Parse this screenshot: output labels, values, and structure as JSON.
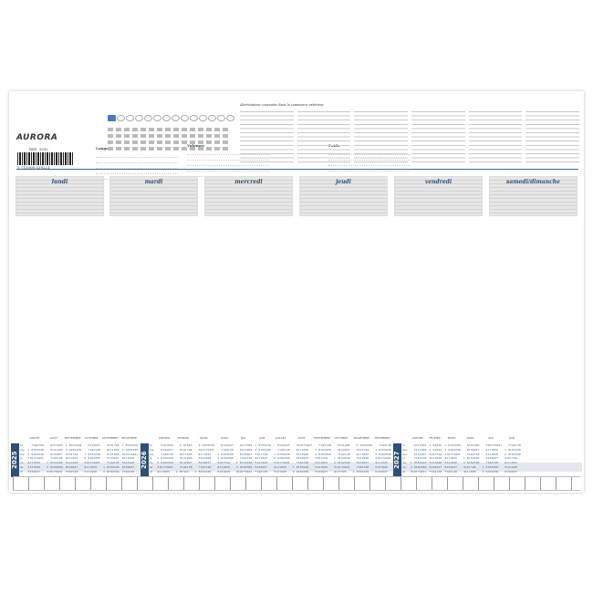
{
  "brand": "AURORA",
  "ref": "REF. 3392",
  "ean": "5 711008 339221",
  "units": [
    {
      "title": "Longueurs"
    },
    {
      "title": "Volumes"
    },
    {
      "title": "Poids"
    }
  ],
  "abbreviations_title": "Abréviations courantes dans le commerce extérieur",
  "days": [
    "lundi",
    "mardi",
    "mercredi",
    "jeudi",
    "vendredi",
    "samedi/dimanche"
  ],
  "weekdays": [
    "lu",
    "ma",
    "me",
    "je",
    "ve",
    "sa",
    "di"
  ],
  "accent": "#2d4f78",
  "years": [
    {
      "year": "2025",
      "months": [
        "JUILLET",
        "AOÛT",
        "SEPTEMBRE",
        "OCTOBRE",
        "NOVEMBRE",
        "DÉCEMBRE"
      ]
    },
    {
      "year": "2026",
      "months": [
        "JANVIER",
        "FÉVRIER",
        "MARS",
        "AVRIL",
        "MAI",
        "JUIN",
        "JUILLET",
        "AOÛT",
        "SEPTEMBRE",
        "OCTOBRE",
        "NOVEMBRE",
        "DÉCEMBRE"
      ]
    },
    {
      "year": "2027",
      "months": [
        "JANVIER",
        "FÉVRIER",
        "MARS",
        "AVRIL",
        "MAI",
        "JUIN"
      ]
    }
  ]
}
